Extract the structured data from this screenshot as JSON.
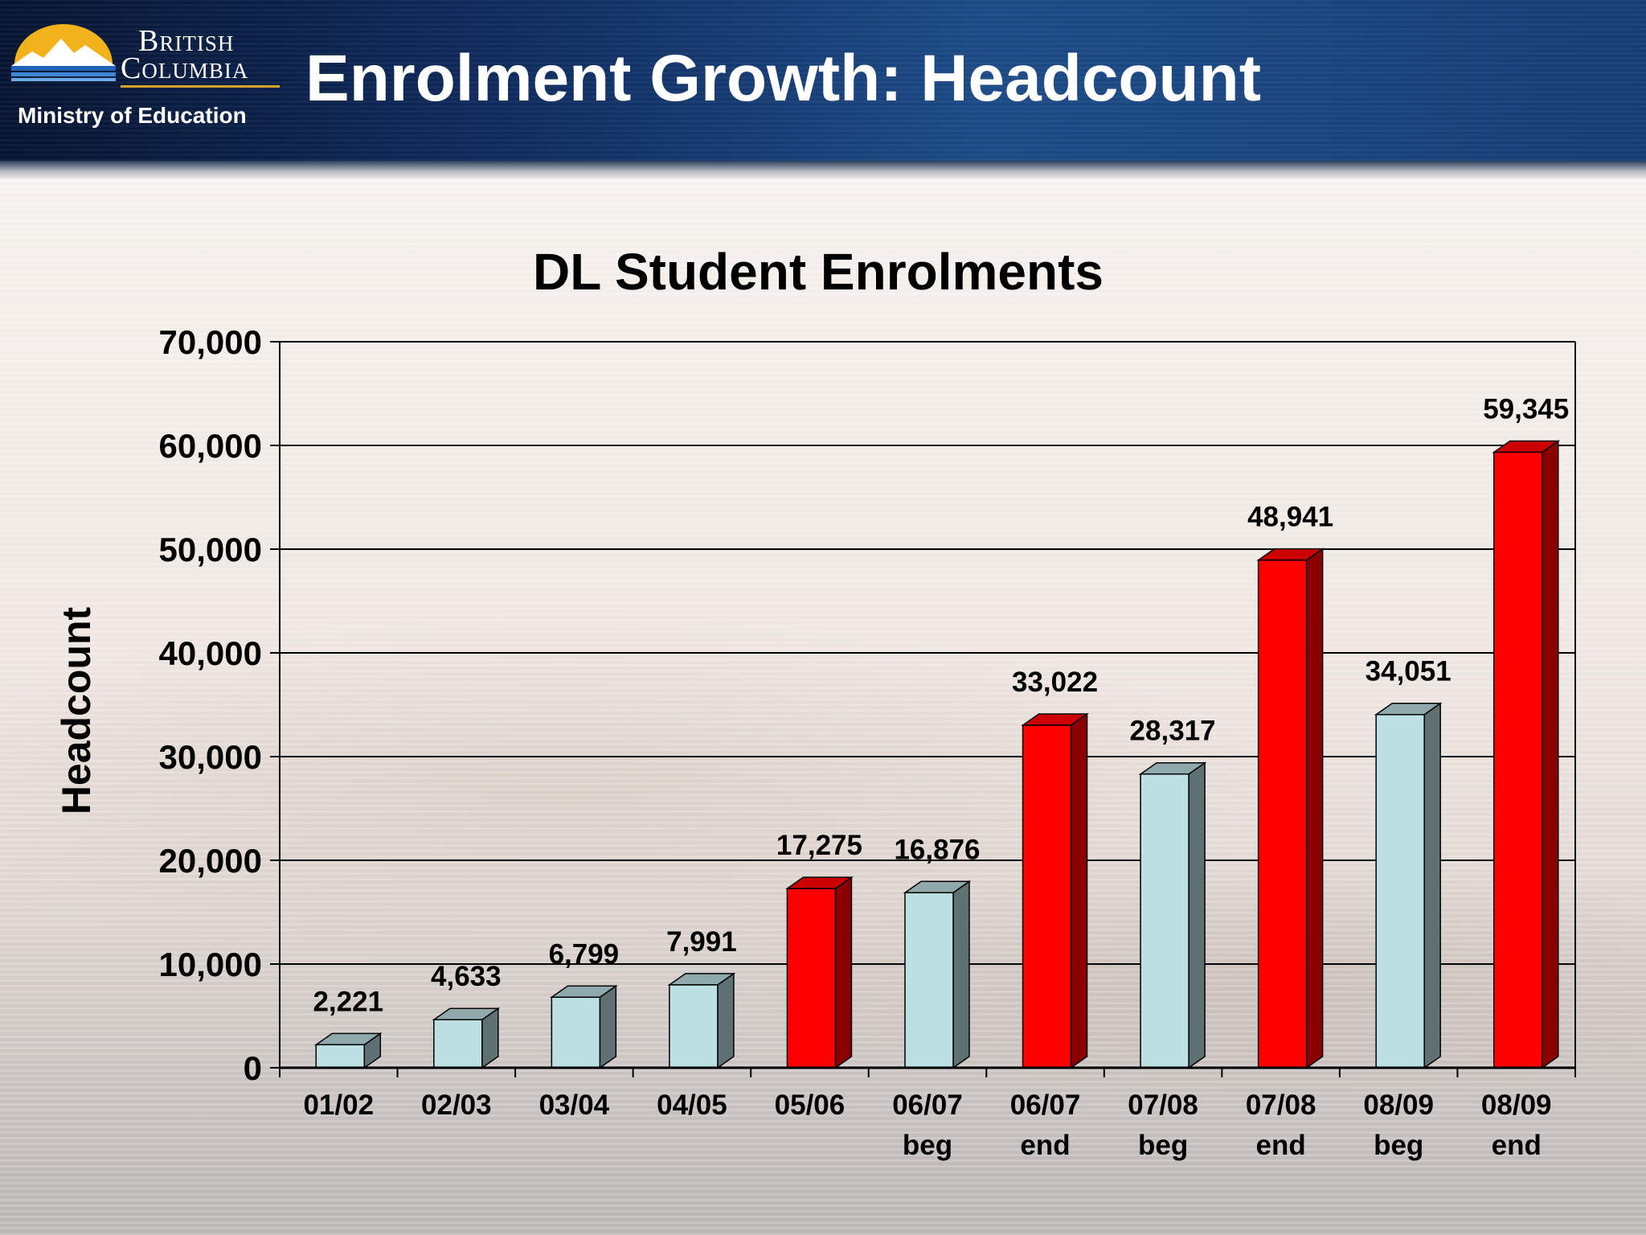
{
  "header": {
    "logo_line1": "British",
    "logo_line2": "Columbia",
    "ministry": "Ministry of Education",
    "title": "Enrolment Growth: Headcount"
  },
  "colors": {
    "accent_red": "#ff0000",
    "accent_blue": "#bde0e4"
  },
  "chart_data": {
    "type": "bar",
    "title": "DL Student Enrolments",
    "xlabel": "",
    "ylabel": "Headcount",
    "ylim": [
      0,
      70000
    ],
    "yticks": [
      0,
      10000,
      20000,
      30000,
      40000,
      50000,
      60000,
      70000
    ],
    "ytick_labels": [
      "0",
      "10,000",
      "20,000",
      "30,000",
      "40,000",
      "50,000",
      "60,000",
      "70,000"
    ],
    "grid": true,
    "three_d": true,
    "categories": [
      [
        "01/02"
      ],
      [
        "02/03"
      ],
      [
        "03/04"
      ],
      [
        "04/05"
      ],
      [
        "05/06"
      ],
      [
        "06/07",
        "beg"
      ],
      [
        "06/07",
        "end"
      ],
      [
        "07/08",
        "beg"
      ],
      [
        "07/08",
        "end"
      ],
      [
        "08/09",
        "beg"
      ],
      [
        "08/09",
        "end"
      ]
    ],
    "values": [
      2221,
      4633,
      6799,
      7991,
      17275,
      16876,
      33022,
      28317,
      48941,
      34051,
      59345
    ],
    "value_labels": [
      "2,221",
      "4,633",
      "6,799",
      "7,991",
      "17,275",
      "16,876",
      "33,022",
      "28,317",
      "48,941",
      "34,051",
      "59,345"
    ],
    "bar_colors": [
      "blue",
      "blue",
      "blue",
      "blue",
      "red",
      "blue",
      "red",
      "blue",
      "red",
      "blue",
      "red"
    ]
  }
}
